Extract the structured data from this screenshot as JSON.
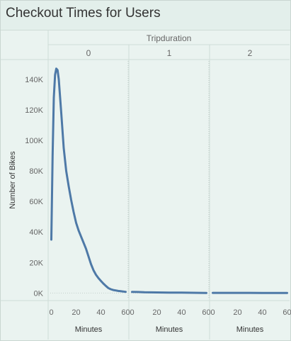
{
  "title": "Checkout Times for Users",
  "colors": {
    "line": "#4e79a7",
    "background": "#eaf3f0",
    "header": "#e3efeb",
    "grid": "#cfdcd7"
  },
  "chart_data": {
    "type": "line",
    "title": "Checkout Times for Users",
    "column_header": "Tripduration",
    "panels": [
      "0",
      "1",
      "2"
    ],
    "xlabel": "Minutes",
    "ylabel": "Number of Bikes",
    "xlim": [
      -2,
      62
    ],
    "ylim": [
      -4000,
      152000
    ],
    "xticks": [
      "0",
      "20",
      "40",
      "60"
    ],
    "yticks": [
      {
        "value": 0,
        "label": "0K"
      },
      {
        "value": 20000,
        "label": "20K"
      },
      {
        "value": 40000,
        "label": "40K"
      },
      {
        "value": 60000,
        "label": "60K"
      },
      {
        "value": 80000,
        "label": "80K"
      },
      {
        "value": 100000,
        "label": "100K"
      },
      {
        "value": 120000,
        "label": "120K"
      },
      {
        "value": 140000,
        "label": "140K"
      }
    ],
    "series": [
      {
        "panel": "0",
        "x": [
          0,
          1,
          2,
          3,
          4,
          5,
          6,
          8,
          10,
          12,
          14,
          16,
          18,
          20,
          22,
          24,
          26,
          28,
          30,
          32,
          34,
          36,
          38,
          40,
          42,
          44,
          46,
          48,
          50,
          52,
          54,
          56,
          58,
          60
        ],
        "y": [
          35000,
          90000,
          128000,
          143000,
          147000,
          146000,
          140000,
          118000,
          95000,
          80000,
          70000,
          61000,
          53000,
          46000,
          41000,
          37000,
          33000,
          29000,
          24000,
          19000,
          15000,
          12000,
          9800,
          8000,
          6200,
          4700,
          3300,
          2500,
          2000,
          1700,
          1400,
          1200,
          1000,
          800
        ]
      },
      {
        "panel": "1",
        "x": [
          0,
          5,
          10,
          20,
          30,
          40,
          50,
          60
        ],
        "y": [
          800,
          700,
          500,
          400,
          300,
          250,
          200,
          100
        ]
      },
      {
        "panel": "2",
        "x": [
          0,
          10,
          20,
          30,
          40,
          50,
          60
        ],
        "y": [
          150,
          130,
          120,
          110,
          100,
          90,
          80
        ]
      }
    ]
  }
}
